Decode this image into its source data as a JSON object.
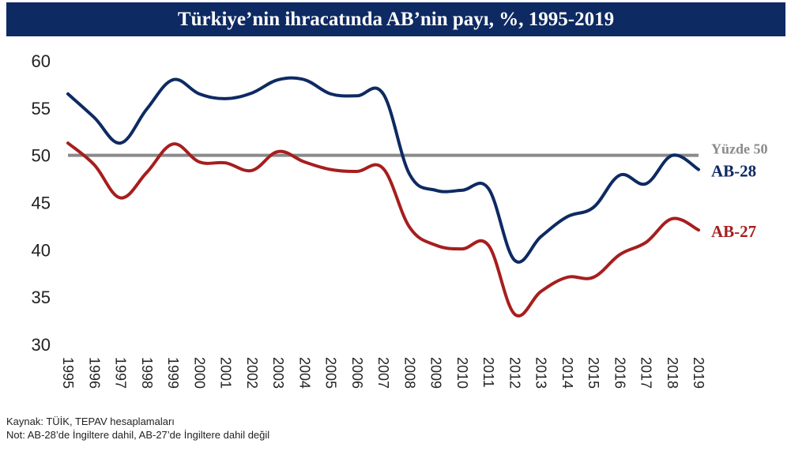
{
  "chart_data": {
    "type": "line",
    "title": "Türkiye’nin ihracatında AB’nin payı, %, 1995-2019",
    "x": [
      "1995",
      "1996",
      "1997",
      "1998",
      "1999",
      "2000",
      "2001",
      "2002",
      "2003",
      "2004",
      "2005",
      "2006",
      "2007",
      "2008",
      "2009",
      "2010",
      "2011",
      "2012",
      "2013",
      "2014",
      "2015",
      "2016",
      "2017",
      "2018",
      "2019"
    ],
    "ylim": [
      30,
      60
    ],
    "yticks": [
      "30",
      "35",
      "40",
      "45",
      "50",
      "55",
      "60"
    ],
    "series": [
      {
        "name": "AB-28",
        "color": "#0e2a63",
        "values": [
          56.5,
          54.0,
          51.3,
          54.9,
          58.0,
          56.5,
          56.0,
          56.6,
          58.0,
          58.0,
          56.5,
          56.3,
          56.5,
          48.0,
          46.3,
          46.3,
          46.5,
          38.9,
          41.4,
          43.5,
          44.5,
          47.9,
          47.0,
          50.0,
          48.5
        ]
      },
      {
        "name": "AB-27",
        "color": "#a61e1e",
        "values": [
          51.3,
          49.0,
          45.5,
          48.2,
          51.2,
          49.3,
          49.2,
          48.4,
          50.4,
          49.3,
          48.5,
          48.3,
          48.6,
          42.4,
          40.5,
          40.1,
          40.5,
          33.2,
          35.6,
          37.1,
          37.1,
          39.5,
          40.8,
          43.3,
          42.1
        ]
      }
    ],
    "reference": {
      "name": "Yüzde 50",
      "value": 50,
      "color": "#8a8a8a"
    },
    "grid": false,
    "legend": "inline-right"
  },
  "footer": {
    "source": "Kaynak: TÜİK, TEPAV hesaplamaları",
    "note": "Not: AB-28’de İngiltere dahil, AB-27’de İngiltere dahil değil"
  }
}
